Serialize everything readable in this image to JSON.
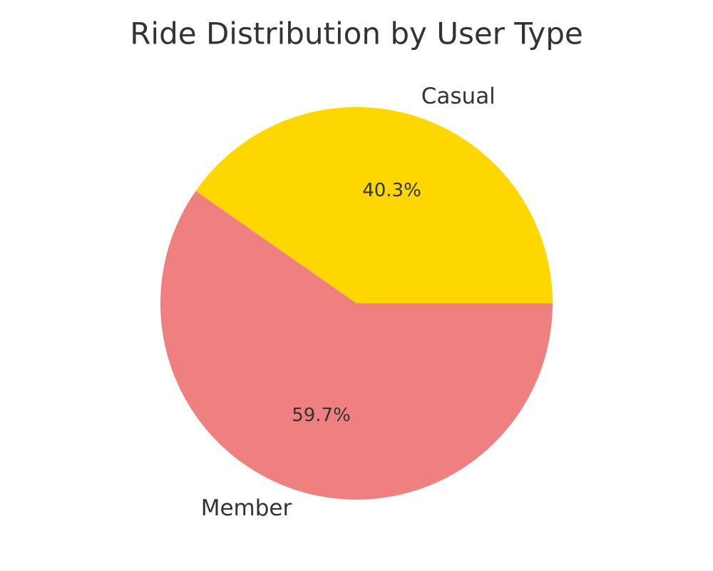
{
  "chart_data": {
    "type": "pie",
    "title": "Ride Distribution by User Type",
    "categories": [
      "Casual",
      "Member"
    ],
    "values": [
      40.3,
      59.7
    ],
    "value_labels": [
      "40.3%",
      "59.7%"
    ],
    "colors": [
      "#FFD700",
      "#F08080"
    ],
    "start_angle_deg": 0,
    "direction": "counterclockwise",
    "legend": "none"
  }
}
